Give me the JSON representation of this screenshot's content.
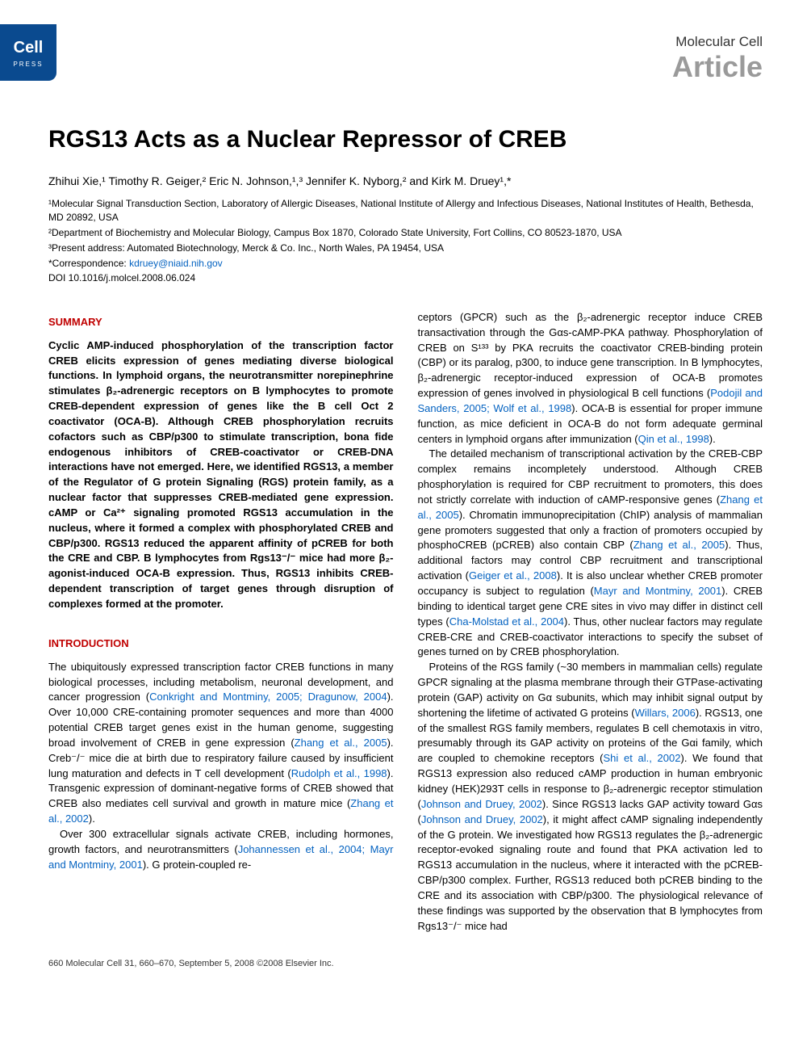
{
  "logo": {
    "main": "Cell",
    "sub": "PRESS"
  },
  "header": {
    "journal": "Molecular Cell",
    "label": "Article"
  },
  "title": "RGS13 Acts as a Nuclear Repressor of CREB",
  "authors_html": "Zhihui Xie,¹ Timothy R. Geiger,² Eric N. Johnson,¹,³ Jennifer K. Nyborg,² and Kirk M. Druey¹,*",
  "affiliations": [
    "¹Molecular Signal Transduction Section, Laboratory of Allergic Diseases, National Institute of Allergy and Infectious Diseases, National Institutes of Health, Bethesda, MD 20892, USA",
    "²Department of Biochemistry and Molecular Biology, Campus Box 1870, Colorado State University, Fort Collins, CO 80523-1870, USA",
    "³Present address: Automated Biotechnology, Merck & Co. Inc., North Wales, PA 19454, USA",
    "*Correspondence:"
  ],
  "email": "kdruey@niaid.nih.gov",
  "doi": "DOI 10.1016/j.molcel.2008.06.024",
  "sections": {
    "summary_head": "SUMMARY",
    "summary": "Cyclic AMP-induced phosphorylation of the transcription factor CREB elicits expression of genes mediating diverse biological functions. In lymphoid organs, the neurotransmitter norepinephrine stimulates β₂-adrenergic receptors on B lymphocytes to promote CREB-dependent expression of genes like the B cell Oct 2 coactivator (OCA-B). Although CREB phosphorylation recruits cofactors such as CBP/p300 to stimulate transcription, bona fide endogenous inhibitors of CREB-coactivator or CREB-DNA interactions have not emerged. Here, we identified RGS13, a member of the Regulator of G protein Signaling (RGS) protein family, as a nuclear factor that suppresses CREB-mediated gene expression. cAMP or Ca²⁺ signaling promoted RGS13 accumulation in the nucleus, where it formed a complex with phosphorylated CREB and CBP/p300. RGS13 reduced the apparent affinity of pCREB for both the CRE and CBP. B lymphocytes from Rgs13⁻/⁻ mice had more β₂-agonist-induced OCA-B expression. Thus, RGS13 inhibits CREB-dependent transcription of target genes through disruption of complexes formed at the promoter.",
    "intro_head": "INTRODUCTION",
    "intro_p1": "The ubiquitously expressed transcription factor CREB functions in many biological processes, including metabolism, neuronal development, and cancer progression (",
    "intro_p1_cite1": "Conkright and Montminy, 2005; Dragunow, 2004",
    "intro_p1_cont": "). Over 10,000 CRE-containing promoter sequences and more than 4000 potential CREB target genes exist in the human genome, suggesting broad involvement of CREB in gene expression (",
    "intro_p1_cite2": "Zhang et al., 2005",
    "intro_p1_cont2": "). Creb⁻/⁻ mice die at birth due to respiratory failure caused by insufficient lung maturation and defects in T cell development (",
    "intro_p1_cite3": "Rudolph et al., 1998",
    "intro_p1_cont3": "). Transgenic expression of dominant-negative forms of CREB showed that CREB also mediates cell survival and growth in mature mice (",
    "intro_p1_cite4": "Zhang et al., 2002",
    "intro_p1_end": ").",
    "intro_p2": "Over 300 extracellular signals activate CREB, including hormones, growth factors, and neurotransmitters (",
    "intro_p2_cite1": "Johannessen et al., 2004; Mayr and Montminy, 2001",
    "intro_p2_end": "). G protein-coupled re-",
    "right_p1": "ceptors (GPCR) such as the β₂-adrenergic receptor induce CREB transactivation through the Gαs-cAMP-PKA pathway. Phosphorylation of CREB on S¹³³ by PKA recruits the coactivator CREB-binding protein (CBP) or its paralog, p300, to induce gene transcription. In B lymphocytes, β₂-adrenergic receptor-induced expression of OCA-B promotes expression of genes involved in physiological B cell functions (",
    "right_p1_cite1": "Podojil and Sanders, 2005; Wolf et al., 1998",
    "right_p1_cont": "). OCA-B is essential for proper immune function, as mice deficient in OCA-B do not form adequate germinal centers in lymphoid organs after immunization (",
    "right_p1_cite2": "Qin et al., 1998",
    "right_p1_end": ").",
    "right_p2": "The detailed mechanism of transcriptional activation by the CREB-CBP complex remains incompletely understood. Although CREB phosphorylation is required for CBP recruitment to promoters, this does not strictly correlate with induction of cAMP-responsive genes (",
    "right_p2_cite1": "Zhang et al., 2005",
    "right_p2_cont": "). Chromatin immunoprecipitation (ChIP) analysis of mammalian gene promoters suggested that only a fraction of promoters occupied by phosphoCREB (pCREB) also contain CBP (",
    "right_p2_cite2": "Zhang et al., 2005",
    "right_p2_cont2": "). Thus, additional factors may control CBP recruitment and transcriptional activation (",
    "right_p2_cite3": "Geiger et al., 2008",
    "right_p2_cont3": "). It is also unclear whether CREB promoter occupancy is subject to regulation (",
    "right_p2_cite4": "Mayr and Montminy, 2001",
    "right_p2_cont4": "). CREB binding to identical target gene CRE sites in vivo may differ in distinct cell types (",
    "right_p2_cite5": "Cha-Molstad et al., 2004",
    "right_p2_end": "). Thus, other nuclear factors may regulate CREB-CRE and CREB-coactivator interactions to specify the subset of genes turned on by CREB phosphorylation.",
    "right_p3": "Proteins of the RGS family (~30 members in mammalian cells) regulate GPCR signaling at the plasma membrane through their GTPase-activating protein (GAP) activity on Gα subunits, which may inhibit signal output by shortening the lifetime of activated G proteins (",
    "right_p3_cite1": "Willars, 2006",
    "right_p3_cont": "). RGS13, one of the smallest RGS family members, regulates B cell chemotaxis in vitro, presumably through its GAP activity on proteins of the Gαi family, which are coupled to chemokine receptors (",
    "right_p3_cite2": "Shi et al., 2002",
    "right_p3_cont2": "). We found that RGS13 expression also reduced cAMP production in human embryonic kidney (HEK)293T cells in response to β₂-adrenergic receptor stimulation (",
    "right_p3_cite3": "Johnson and Druey, 2002",
    "right_p3_cont3": "). Since RGS13 lacks GAP activity toward Gαs (",
    "right_p3_cite4": "Johnson and Druey, 2002",
    "right_p3_cont4": "), it might affect cAMP signaling independently of the G protein. We investigated how RGS13 regulates the β₂-adrenergic receptor-evoked signaling route and found that PKA activation led to RGS13 accumulation in the nucleus, where it interacted with the pCREB-CBP/p300 complex. Further, RGS13 reduced both pCREB binding to the CRE and its association with CBP/p300. The physiological relevance of these findings was supported by the observation that B lymphocytes from Rgs13⁻/⁻ mice had"
  },
  "footer": "660   Molecular Cell 31, 660–670, September 5, 2008 ©2008 Elsevier Inc.",
  "colors": {
    "logo_bg": "#0a4a8f",
    "section_head": "#c00000",
    "cite": "#0563c1",
    "article_label": "#9a9a9a"
  }
}
